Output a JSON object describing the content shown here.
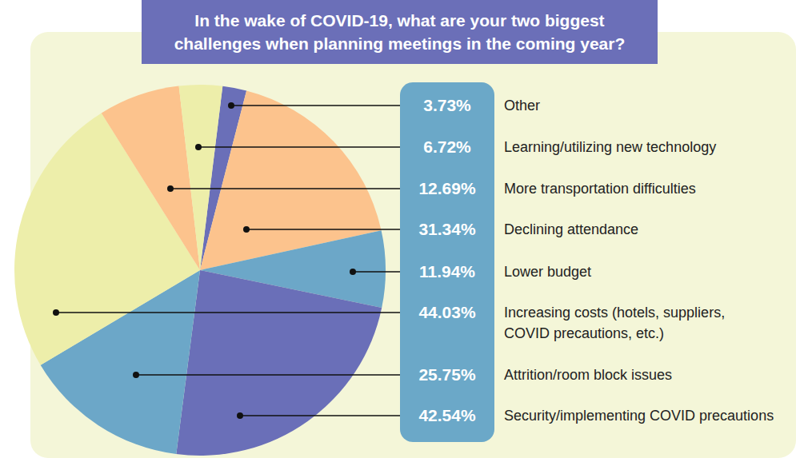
{
  "chart_data": {
    "type": "pie",
    "title": "In the wake of COVID-19, what are your two biggest challenges when planning meetings in the coming year?",
    "categories": [
      "Other",
      "Learning/utilizing new technology",
      "More transportation difficulties",
      "Declining attendance",
      "Lower budget",
      "Increasing costs (hotels, suppliers, COVID precautions, etc.)",
      "Attrition/room block issues",
      "Security/implementing COVID precautions"
    ],
    "values": [
      3.73,
      6.72,
      12.69,
      31.34,
      11.94,
      44.03,
      25.75,
      42.54
    ],
    "value_labels": [
      "3.73%",
      "6.72%",
      "12.69%",
      "31.34%",
      "11.94%",
      "44.03%",
      "25.75%",
      "42.54%"
    ],
    "colors": [
      "#6a6fb8",
      "#edeeaa",
      "#fcc38d",
      "#fcc38d",
      "#6ca7c8",
      "#edeeaa",
      "#6ca7c8",
      "#6a6fb8"
    ]
  }
}
